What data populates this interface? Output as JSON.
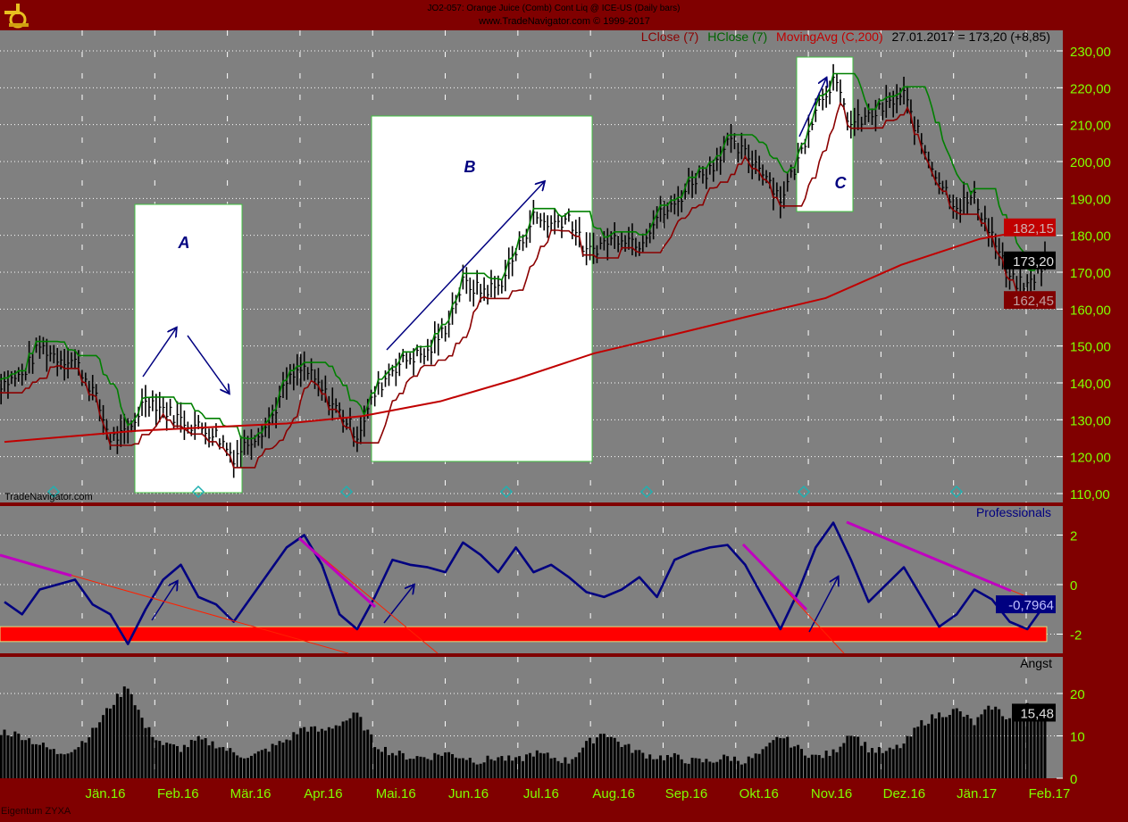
{
  "header": {
    "title": "JO2-057:  Orange Juice (Comb) Cont Liq @ ICE-US  (Daily bars)",
    "copyright": "www.TradeNavigator.com © 1999-2017",
    "legend_lclose": "LClose (7)",
    "legend_hclose": "HClose (7)",
    "legend_ma": "MovingAvg (C,200)",
    "legend_last": "27.01.2017 = 173,20 (+8,85)"
  },
  "watermark": "TradeNavigator.com",
  "footer": "Eigentum ZYXA",
  "colors": {
    "background": "#800000",
    "plot": "#808080",
    "lclose": "#8b0000",
    "hclose": "#008000",
    "ma": "#c00000",
    "axis_text": "#80ff00",
    "oscillator": "#000080",
    "trendline": "#c000c0",
    "band": "#ff0000"
  },
  "annotations": {
    "a": "A",
    "b": "B",
    "c": "C"
  },
  "chart_data": [
    {
      "type": "line",
      "ylim": [
        110,
        230
      ],
      "yticks": [
        "110,00",
        "120,00",
        "130,00",
        "140,00",
        "150,00",
        "160,00",
        "170,00",
        "180,00",
        "190,00",
        "200,00",
        "210,00",
        "220,00",
        "230,00"
      ],
      "x": [
        "2015-12-11",
        "2015-12-18",
        "2015-12-25",
        "2016-01-01",
        "2016-01-08",
        "2016-01-15",
        "2016-01-22",
        "2016-01-29",
        "2016-02-05",
        "2016-02-12",
        "2016-02-19",
        "2016-02-26",
        "2016-03-04",
        "2016-03-11",
        "2016-03-18",
        "2016-03-25",
        "2016-04-01",
        "2016-04-08",
        "2016-04-15",
        "2016-04-22",
        "2016-04-29",
        "2016-05-06",
        "2016-05-13",
        "2016-05-20",
        "2016-05-27",
        "2016-06-03",
        "2016-06-10",
        "2016-06-17",
        "2016-06-24",
        "2016-07-01",
        "2016-07-08",
        "2016-07-15",
        "2016-07-22",
        "2016-07-29",
        "2016-08-05",
        "2016-08-12",
        "2016-08-19",
        "2016-08-26",
        "2016-09-02",
        "2016-09-09",
        "2016-09-16",
        "2016-09-23",
        "2016-09-30",
        "2016-10-07",
        "2016-10-14",
        "2016-10-21",
        "2016-10-28",
        "2016-11-04",
        "2016-11-11",
        "2016-11-18",
        "2016-11-25",
        "2016-12-02",
        "2016-12-09",
        "2016-12-16",
        "2016-12-23",
        "2016-12-30",
        "2017-01-06",
        "2017-01-13",
        "2017-01-20",
        "2017-01-27"
      ],
      "close": [
        140,
        142,
        150,
        147,
        146,
        138,
        125,
        126,
        136,
        133,
        130,
        128,
        126,
        120,
        125,
        129,
        140,
        144,
        138,
        132,
        126,
        137,
        144,
        147,
        148,
        155,
        167,
        165,
        166,
        175,
        185,
        183,
        185,
        175,
        178,
        180,
        178,
        185,
        188,
        195,
        198,
        205,
        202,
        198,
        190,
        200,
        215,
        222,
        210,
        212,
        215,
        218,
        205,
        195,
        188,
        190,
        180,
        168,
        166,
        173.2
      ],
      "ma_200": {
        "x": [
          "2015-12-11",
          "2016-02-01",
          "2016-04-01",
          "2016-05-01",
          "2016-06-01",
          "2016-07-01",
          "2016-08-01",
          "2016-09-01",
          "2016-10-01",
          "2016-11-01",
          "2016-12-01",
          "2017-01-01",
          "2017-01-27"
        ],
        "values": [
          124,
          127,
          129,
          131,
          135,
          141,
          148,
          153,
          158,
          163,
          172,
          179,
          182.15
        ]
      },
      "badges": {
        "ma": "182,15",
        "last": "173,20",
        "lclose": "162,45"
      },
      "series_names": [
        "LClose (7)",
        "HClose (7)",
        "MovingAvg (C,200)"
      ]
    },
    {
      "type": "line",
      "title": "Professionals",
      "ylim": [
        -3,
        3
      ],
      "yticks": [
        "-2",
        "0",
        "2"
      ],
      "values": [
        -0.7,
        -1.2,
        -0.2,
        0,
        0.2,
        -0.8,
        -1.2,
        -2.4,
        -1.0,
        0.2,
        0.8,
        -0.5,
        -0.8,
        -1.5,
        -0.5,
        0.5,
        1.5,
        2,
        0.8,
        -1.2,
        -1.8,
        -0.5,
        1,
        0.8,
        0.7,
        0.5,
        1.7,
        1.2,
        0.5,
        1.5,
        0.5,
        0.8,
        0.3,
        -0.3,
        -0.5,
        -0.2,
        0.3,
        -0.5,
        1.0,
        1.3,
        1.5,
        1.6,
        0.8,
        -0.5,
        -1.8,
        -0.3,
        1.5,
        2.5,
        1.0,
        -0.7,
        0,
        0.7,
        -0.5,
        -1.7,
        -1.2,
        -0.2,
        -0.6,
        -1.5,
        -1.8,
        -0.7964
      ],
      "band": [
        -2.3,
        -1.7
      ],
      "last": "-0,7964"
    },
    {
      "type": "bar",
      "title": "Angst",
      "ylim": [
        0,
        27
      ],
      "yticks": [
        "0",
        "10",
        "20"
      ],
      "values": [
        11,
        10,
        8,
        6,
        7,
        11,
        17,
        22,
        12,
        8,
        7,
        9,
        8,
        6,
        5,
        7,
        9,
        12,
        11,
        13,
        15,
        8,
        6,
        5,
        5,
        6,
        5,
        4,
        5,
        4,
        6,
        5,
        4,
        8,
        11,
        8,
        6,
        5,
        5,
        4,
        4,
        5,
        4,
        6,
        10,
        7,
        5,
        6,
        11,
        7,
        6,
        8,
        13,
        15,
        16,
        13,
        17,
        14,
        18,
        15.48
      ],
      "last": "15,48"
    }
  ],
  "months": [
    "Jän.16",
    "Feb.16",
    "Mär.16",
    "Apr.16",
    "Mai.16",
    "Jun.16",
    "Jul.16",
    "Aug.16",
    "Sep.16",
    "Okt.16",
    "Nov.16",
    "Dez.16",
    "Jän.17",
    "Feb.17"
  ]
}
